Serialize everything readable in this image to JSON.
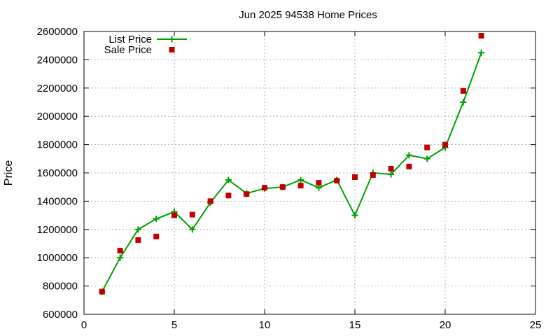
{
  "chart_data": {
    "type": "line",
    "title": "Jun 2025 94538 Home Prices",
    "xlabel": "",
    "ylabel": "Price",
    "xlim": [
      0,
      25
    ],
    "ylim": [
      600000,
      2600000
    ],
    "xticks": [
      "0",
      "5",
      "10",
      "15",
      "20",
      "25"
    ],
    "yticks": [
      "600000",
      "800000",
      "1000000",
      "1200000",
      "1400000",
      "1600000",
      "1800000",
      "2000000",
      "2200000",
      "2400000",
      "2600000"
    ],
    "grid": true,
    "legend_position": "top-left",
    "x": [
      1,
      2,
      3,
      4,
      5,
      6,
      7,
      8,
      9,
      10,
      11,
      12,
      13,
      14,
      15,
      16,
      17,
      18,
      19,
      20,
      21,
      22
    ],
    "series": [
      {
        "name": "List Price",
        "style": "line-with-plus-markers",
        "color": "#00a000",
        "values": [
          760000,
          1000000,
          1200000,
          1275000,
          1325000,
          1200000,
          1390000,
          1550000,
          1455000,
          1490000,
          1500000,
          1550000,
          1495000,
          1550000,
          1300000,
          1600000,
          1590000,
          1725000,
          1700000,
          1780000,
          2100000,
          2450000
        ]
      },
      {
        "name": "Sale Price",
        "style": "square-markers",
        "color": "#c00000",
        "values": [
          760000,
          1050000,
          1125000,
          1150000,
          1300000,
          1305000,
          1400000,
          1440000,
          1450000,
          1495000,
          1500000,
          1510000,
          1530000,
          1545000,
          1570000,
          1585000,
          1630000,
          1645000,
          1780000,
          1800000,
          2180000,
          2570000
        ]
      }
    ]
  }
}
